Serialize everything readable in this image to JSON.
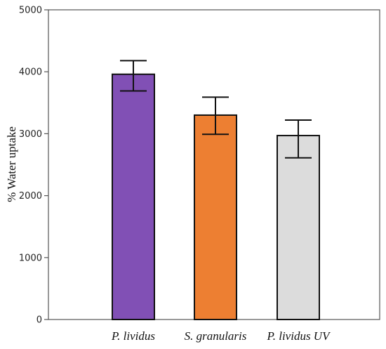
{
  "chart_data": {
    "type": "bar",
    "title": "",
    "xlabel": "",
    "ylabel": "% Water uptake",
    "ylim": [
      0,
      5000
    ],
    "yticks": [
      0,
      1000,
      2000,
      3000,
      4000,
      5000
    ],
    "ytick_labels": [
      "0",
      "1000",
      "2000",
      "3000",
      "4000",
      "5000"
    ],
    "categories": [
      "P. lividus",
      "S. granularis",
      "P. lividus UV"
    ],
    "values": [
      3960,
      3300,
      2970
    ],
    "error_low": [
      3690,
      2990,
      2610
    ],
    "error_high": [
      4180,
      3590,
      3220
    ],
    "colors": [
      "#8150B5",
      "#ED7F32",
      "#DCDCDC"
    ],
    "edge_color": "#111111",
    "grid": false,
    "legend": "none"
  }
}
